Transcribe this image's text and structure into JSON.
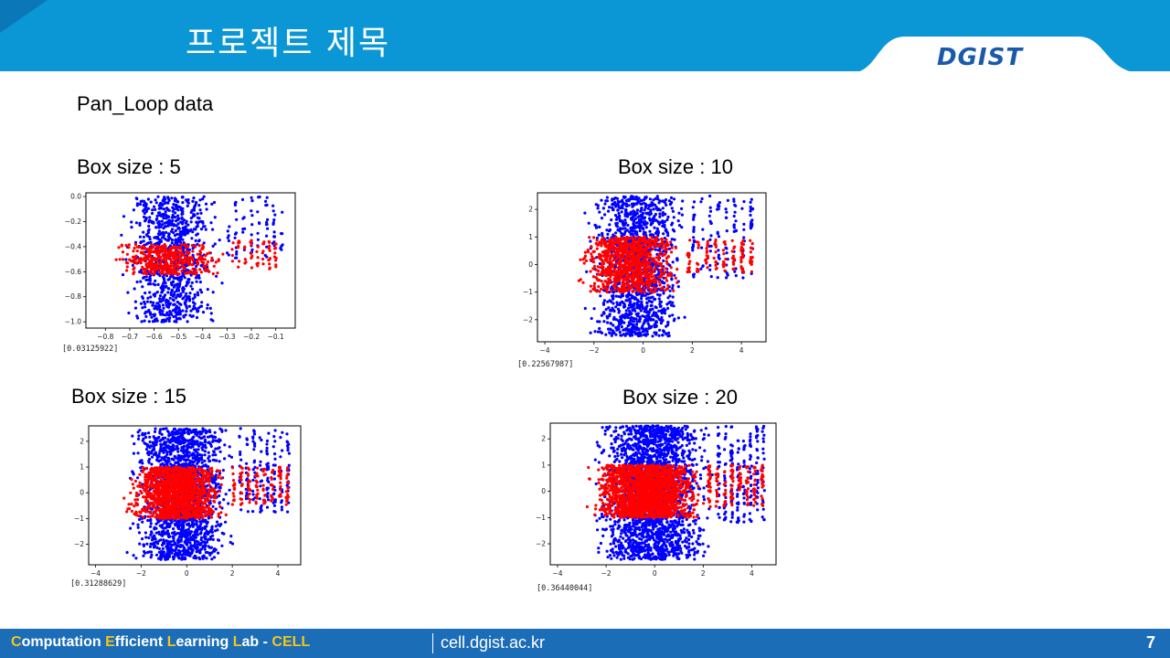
{
  "header": {
    "title": "프로젝트 제목",
    "logo": "DGIST"
  },
  "section_title": "Pan_Loop data",
  "footer": {
    "lab_name": "Computation Efficient Learning Lab - CELL",
    "url": "cell.dgist.ac.kr",
    "page_number": "7"
  },
  "colors": {
    "header": "#0b97d6",
    "footer": "#1b6db8",
    "series_blue": "#0000ff",
    "series_red": "#ff0000",
    "accent": "#f5c518"
  },
  "chart_data": [
    {
      "type": "scatter",
      "title": "Box size : 5",
      "xlim": [
        -0.88,
        -0.02
      ],
      "ylim": [
        -1.05,
        0.03
      ],
      "xticks": [
        -0.8,
        -0.7,
        -0.6,
        -0.5,
        -0.4,
        -0.3,
        -0.2,
        -0.1
      ],
      "yticks": [
        0.0,
        -0.2,
        -0.4,
        -0.6,
        -0.8,
        -1.0
      ],
      "x_labels": [
        "−0.8",
        "−0.7",
        "−0.6",
        "−0.5",
        "−0.4",
        "−0.3",
        "−0.2",
        "−0.1"
      ],
      "y_labels": [
        "0.0",
        "−0.2",
        "−0.4",
        "−0.6",
        "−0.8",
        "−1.0"
      ],
      "output": "[0.03125922]",
      "series": [
        {
          "color": "#0000ff",
          "x_range": [
            -0.75,
            -0.3
          ],
          "y_range": [
            -1.0,
            0.0
          ],
          "extra_x_range": [
            -0.3,
            -0.05
          ],
          "extra_y_range": [
            -0.5,
            0.0
          ]
        },
        {
          "color": "#ff0000",
          "x_range": [
            -0.8,
            -0.28
          ],
          "y_range": [
            -0.62,
            -0.38
          ],
          "extra_x_range": [
            -0.28,
            -0.08
          ],
          "extra_y_range": [
            -0.58,
            -0.35
          ]
        }
      ]
    },
    {
      "type": "scatter",
      "title": "Box size : 10",
      "xlim": [
        -4.3,
        5.0
      ],
      "ylim": [
        -2.8,
        2.6
      ],
      "xticks": [
        -4,
        -2,
        0,
        2,
        4
      ],
      "yticks": [
        2,
        1,
        0,
        -1,
        -2
      ],
      "x_labels": [
        "−4",
        "−2",
        "0",
        "2",
        "4"
      ],
      "y_labels": [
        "2",
        "1",
        "0",
        "−1",
        "−2"
      ],
      "output": "[0.22567987]",
      "series": [
        {
          "color": "#0000ff",
          "x_range": [
            -2.5,
            2.0
          ],
          "y_range": [
            -2.6,
            2.5
          ],
          "extra_x_range": [
            2.0,
            4.7
          ],
          "extra_y_range": [
            -0.5,
            2.5
          ]
        },
        {
          "color": "#ff0000",
          "x_range": [
            -3.0,
            1.8
          ],
          "y_range": [
            -1.0,
            1.0
          ],
          "extra_x_range": [
            1.8,
            4.7
          ],
          "extra_y_range": [
            -0.3,
            0.9
          ]
        }
      ]
    },
    {
      "type": "scatter",
      "title": "Box size : 15",
      "xlim": [
        -4.3,
        5.0
      ],
      "ylim": [
        -2.8,
        2.6
      ],
      "xticks": [
        -4,
        -2,
        0,
        2,
        4
      ],
      "yticks": [
        2,
        1,
        0,
        -1,
        -2
      ],
      "x_labels": [
        "−4",
        "−2",
        "0",
        "2",
        "4"
      ],
      "y_labels": [
        "2",
        "1",
        "0",
        "−1",
        "−2"
      ],
      "output": "[0.31288629]",
      "series": [
        {
          "color": "#0000ff",
          "x_range": [
            -2.8,
            2.3
          ],
          "y_range": [
            -2.6,
            2.5
          ],
          "extra_x_range": [
            2.3,
            4.7
          ],
          "extra_y_range": [
            -0.8,
            2.5
          ]
        },
        {
          "color": "#ff0000",
          "x_range": [
            -3.0,
            2.0
          ],
          "y_range": [
            -1.0,
            1.0
          ],
          "extra_x_range": [
            2.0,
            4.7
          ],
          "extra_y_range": [
            -0.5,
            1.0
          ]
        }
      ]
    },
    {
      "type": "scatter",
      "title": "Box size : 20",
      "xlim": [
        -4.3,
        5.0
      ],
      "ylim": [
        -2.8,
        2.6
      ],
      "xticks": [
        -4,
        -2,
        0,
        2,
        4
      ],
      "yticks": [
        2,
        1,
        0,
        -1,
        -2
      ],
      "x_labels": [
        "−4",
        "−2",
        "0",
        "2",
        "4"
      ],
      "y_labels": [
        "2",
        "1",
        "0",
        "−1",
        "−2"
      ],
      "output": "[0.36440044]",
      "series": [
        {
          "color": "#0000ff",
          "x_range": [
            -2.8,
            2.6
          ],
          "y_range": [
            -2.6,
            2.5
          ],
          "extra_x_range": [
            2.6,
            4.7
          ],
          "extra_y_range": [
            -1.2,
            2.5
          ]
        },
        {
          "color": "#ff0000",
          "x_range": [
            -3.0,
            2.2
          ],
          "y_range": [
            -1.0,
            1.0
          ],
          "extra_x_range": [
            2.2,
            4.7
          ],
          "extra_y_range": [
            -0.6,
            1.0
          ]
        }
      ]
    }
  ]
}
